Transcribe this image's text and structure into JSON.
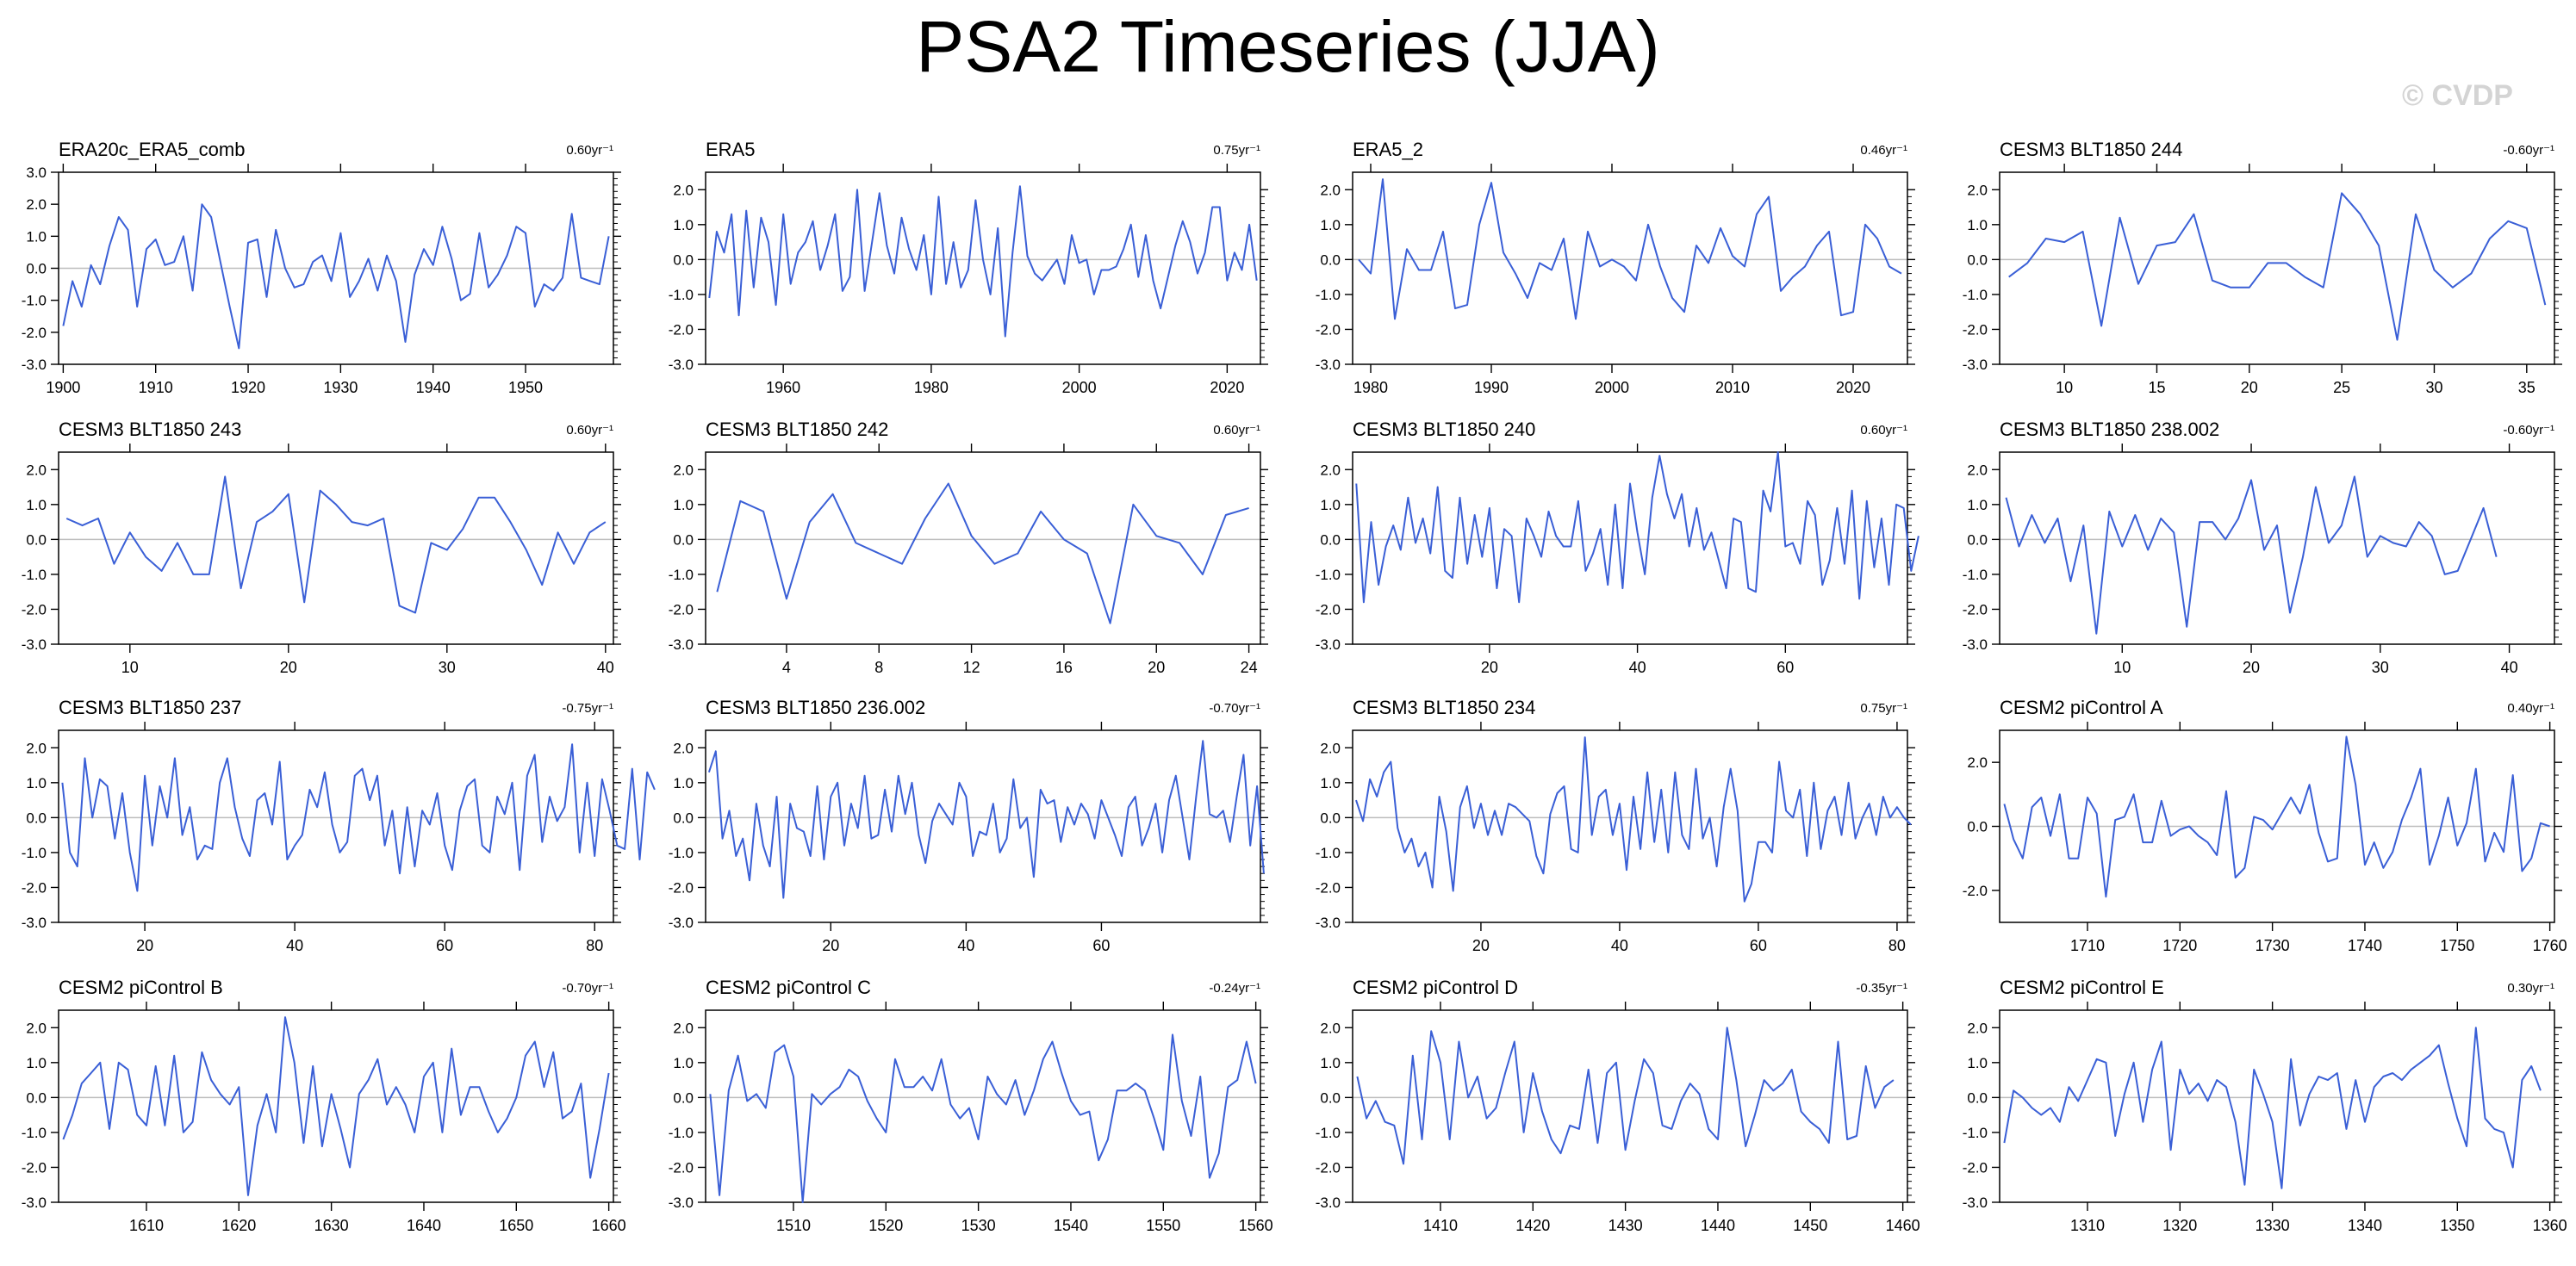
{
  "title": "PSA2 Timeseries (JJA)",
  "watermark": "© CVDP",
  "colors": {
    "line": "#3a5fd6",
    "zero_line": "#bdbdbd",
    "axis": "#000000"
  },
  "chart_data": [
    {
      "type": "line",
      "title": "ERA20c_ERA5_comb",
      "trend": "0.60yr⁻¹",
      "xlim": [
        1899.5,
        1959.5
      ],
      "ylim": [
        -3.0,
        3.0
      ],
      "xticks": [
        1900,
        1910,
        1920,
        1930,
        1940,
        1950
      ],
      "yticks": [
        -3.0,
        -2.0,
        -1.0,
        0.0,
        1.0,
        2.0,
        3.0
      ],
      "x0": 1900,
      "dx": 1,
      "values": [
        -1.8,
        -0.4,
        -1.2,
        0.1,
        -0.5,
        0.7,
        1.6,
        1.2,
        -1.2,
        0.6,
        0.9,
        0.1,
        0.2,
        1.0,
        -0.7,
        2.0,
        1.6,
        0.2,
        -1.2,
        -2.5,
        0.8,
        0.9,
        -0.9,
        1.2,
        0.0,
        -0.6,
        -0.5,
        0.2,
        0.4,
        -0.4,
        1.1,
        -0.9,
        -0.4,
        0.3,
        -0.7,
        0.4,
        -0.4,
        -2.3,
        -0.2,
        0.6,
        0.1,
        1.3,
        0.3,
        -1.0,
        -0.8,
        1.1,
        -0.6,
        -0.2,
        0.4,
        1.3,
        1.1,
        -1.2,
        -0.5,
        -0.7,
        -0.3,
        1.7,
        -0.3,
        -0.4,
        -0.5,
        1.0
      ]
    },
    {
      "type": "line",
      "title": "ERA5",
      "trend": "0.75yr⁻¹",
      "xlim": [
        1949.5,
        2024.5
      ],
      "ylim": [
        -3.0,
        2.5
      ],
      "xticks": [
        1960,
        1980,
        2000,
        2020
      ],
      "yticks": [
        -3.0,
        -2.0,
        -1.0,
        0.0,
        1.0,
        2.0
      ],
      "x0": 1950,
      "dx": 1,
      "values": [
        -1.1,
        0.8,
        0.2,
        1.3,
        -1.6,
        1.4,
        -0.8,
        1.2,
        0.5,
        -1.3,
        1.3,
        -0.7,
        0.2,
        0.5,
        1.1,
        -0.3,
        0.4,
        1.3,
        -0.9,
        -0.5,
        2.0,
        -0.9,
        0.5,
        1.9,
        0.4,
        -0.4,
        1.2,
        0.3,
        -0.3,
        0.7,
        -1.0,
        1.8,
        -0.7,
        0.5,
        -0.8,
        -0.3,
        1.7,
        0.0,
        -1.0,
        0.9,
        -2.2,
        0.2,
        2.1,
        0.1,
        -0.4,
        -0.6,
        -0.3,
        0.0,
        -0.7,
        0.7,
        -0.1,
        0.0,
        -1.0,
        -0.3,
        -0.3,
        -0.2,
        0.3,
        1.0,
        -0.5,
        0.7,
        -0.6,
        -1.4,
        -0.5,
        0.4,
        1.1,
        0.5,
        -0.4,
        0.2,
        1.5,
        1.5,
        -0.6,
        0.2,
        -0.3,
        1.0,
        -0.6
      ]
    },
    {
      "type": "line",
      "title": "ERA5_2",
      "trend": "0.46yr⁻¹",
      "xlim": [
        1978.5,
        2024.5
      ],
      "ylim": [
        -3.0,
        2.5
      ],
      "xticks": [
        1980,
        1990,
        2000,
        2010,
        2020
      ],
      "yticks": [
        -3.0,
        -2.0,
        -1.0,
        0.0,
        1.0,
        2.0
      ],
      "x0": 1979,
      "dx": 1,
      "values": [
        0.0,
        -0.4,
        2.3,
        -1.7,
        0.3,
        -0.3,
        -0.3,
        0.8,
        -1.4,
        -1.3,
        1.0,
        2.2,
        0.2,
        -0.4,
        -1.1,
        -0.1,
        -0.3,
        0.6,
        -1.7,
        0.8,
        -0.2,
        0.0,
        -0.2,
        -0.6,
        1.0,
        -0.2,
        -1.1,
        -1.5,
        0.4,
        -0.1,
        0.9,
        0.1,
        -0.2,
        1.3,
        1.8,
        -0.9,
        -0.5,
        -0.2,
        0.4,
        0.8,
        -1.6,
        -1.5,
        1.0,
        0.6,
        -0.2,
        -0.4
      ]
    },
    {
      "type": "line",
      "title": "CESM3 BLT1850 244",
      "trend": "-0.60yr⁻¹",
      "xlim": [
        6.5,
        36.5
      ],
      "ylim": [
        -3.0,
        2.5
      ],
      "xticks": [
        10,
        15,
        20,
        25,
        30,
        35
      ],
      "yticks": [
        -3.0,
        -2.0,
        -1.0,
        0.0,
        1.0,
        2.0
      ],
      "x0": 7,
      "dx": 1,
      "values": [
        -0.5,
        -0.1,
        0.6,
        0.5,
        0.8,
        -1.9,
        1.2,
        -0.7,
        0.4,
        0.5,
        1.3,
        -0.6,
        -0.8,
        -0.8,
        -0.1,
        -0.1,
        -0.5,
        -0.8,
        1.9,
        1.3,
        0.4,
        -2.3,
        1.3,
        -0.3,
        -0.8,
        -0.4,
        0.6,
        1.1,
        0.9,
        -1.3
      ]
    },
    {
      "type": "line",
      "title": "CESM3 BLT1850 243",
      "trend": "0.60yr⁻¹",
      "xlim": [
        5.5,
        40.5
      ],
      "ylim": [
        -3.0,
        2.5
      ],
      "xticks": [
        10,
        20,
        30,
        40
      ],
      "yticks": [
        -3.0,
        -2.0,
        -1.0,
        0.0,
        1.0,
        2.0
      ],
      "x0": 6,
      "dx": 1,
      "values": [
        0.6,
        0.4,
        0.6,
        -0.7,
        0.2,
        -0.5,
        -0.9,
        -0.1,
        -1.0,
        -1.0,
        1.8,
        -1.4,
        0.5,
        0.8,
        1.3,
        -1.8,
        1.4,
        1.0,
        0.5,
        0.4,
        0.6,
        -1.9,
        -2.1,
        -0.1,
        -0.3,
        0.3,
        1.2,
        1.2,
        0.5,
        -0.3,
        -1.3,
        0.2,
        -0.7,
        0.2,
        0.5
      ]
    },
    {
      "type": "line",
      "title": "CESM3 BLT1850 242",
      "trend": "0.60yr⁻¹",
      "xlim": [
        0.5,
        24.5
      ],
      "ylim": [
        -3.0,
        2.5
      ],
      "xticks": [
        4,
        8,
        12,
        16,
        20,
        24
      ],
      "yticks": [
        -3.0,
        -2.0,
        -1.0,
        0.0,
        1.0,
        2.0
      ],
      "x0": 1,
      "dx": 1,
      "values": [
        -1.5,
        1.1,
        0.8,
        -1.7,
        0.5,
        1.3,
        -0.1,
        -0.4,
        -0.7,
        0.6,
        1.6,
        0.1,
        -0.7,
        -0.4,
        0.8,
        0.0,
        -0.4,
        -2.4,
        1.0,
        0.1,
        -0.1,
        -1.0,
        0.7,
        0.9
      ]
    },
    {
      "type": "line",
      "title": "CESM3 BLT1850 240",
      "trend": "0.60yr⁻¹",
      "xlim": [
        1.5,
        76.5
      ],
      "ylim": [
        -3.0,
        2.5
      ],
      "xticks": [
        20,
        40,
        60
      ],
      "yticks": [
        -3.0,
        -2.0,
        -1.0,
        0.0,
        1.0,
        2.0
      ],
      "x0": 2,
      "dx": 1,
      "values": [
        1.6,
        -1.8,
        0.5,
        -1.3,
        -0.2,
        0.4,
        -0.3,
        1.2,
        -0.1,
        0.6,
        -0.4,
        1.5,
        -0.9,
        -1.1,
        1.2,
        -0.7,
        0.7,
        -0.5,
        0.9,
        -1.4,
        0.3,
        0.1,
        -1.8,
        0.6,
        0.1,
        -0.5,
        0.8,
        0.1,
        -0.2,
        -0.2,
        1.1,
        -0.9,
        -0.4,
        0.3,
        -1.3,
        1.0,
        -1.4,
        1.6,
        0.2,
        -1.0,
        1.2,
        2.4,
        1.3,
        0.6,
        1.3,
        -0.2,
        0.9,
        -0.3,
        0.2,
        -0.6,
        -1.4,
        0.6,
        0.5,
        -1.4,
        -1.5,
        1.4,
        0.8,
        2.5,
        -0.2,
        -0.1,
        -0.7,
        1.1,
        0.7,
        -1.3,
        -0.6,
        0.9,
        -0.7,
        1.4,
        -1.7,
        1.1,
        -0.8,
        0.6,
        -1.3,
        1.0,
        0.9,
        -0.9,
        0.1
      ]
    },
    {
      "type": "line",
      "title": "CESM3 BLT1850 238.002",
      "trend": "-0.60yr⁻¹",
      "xlim": [
        0.5,
        43.5
      ],
      "ylim": [
        -3.0,
        2.5
      ],
      "xticks": [
        10,
        20,
        30,
        40
      ],
      "yticks": [
        -3.0,
        -2.0,
        -1.0,
        0.0,
        1.0,
        2.0
      ],
      "x0": 1,
      "dx": 1,
      "values": [
        1.2,
        -0.2,
        0.7,
        -0.1,
        0.6,
        -1.2,
        0.4,
        -2.7,
        0.8,
        -0.2,
        0.7,
        -0.3,
        0.6,
        0.2,
        -2.5,
        0.5,
        0.5,
        0.0,
        0.6,
        1.7,
        -0.3,
        0.4,
        -2.1,
        -0.5,
        1.5,
        -0.1,
        0.4,
        1.8,
        -0.5,
        0.1,
        -0.1,
        -0.2,
        0.5,
        0.1,
        -1.0,
        -0.9,
        0.0,
        0.9,
        -0.5
      ]
    },
    {
      "type": "line",
      "title": "CESM3 BLT1850 237",
      "trend": "-0.75yr⁻¹",
      "xlim": [
        8.5,
        82.5
      ],
      "ylim": [
        -3.0,
        2.5
      ],
      "xticks": [
        20,
        40,
        60,
        80
      ],
      "yticks": [
        -3.0,
        -2.0,
        -1.0,
        0.0,
        1.0,
        2.0
      ],
      "x0": 9,
      "dx": 1,
      "values": [
        1.0,
        -1.0,
        -1.4,
        1.7,
        0.0,
        1.1,
        0.9,
        -0.6,
        0.7,
        -1.0,
        -2.1,
        1.2,
        -0.8,
        0.9,
        0.0,
        1.7,
        -0.5,
        0.3,
        -1.2,
        -0.8,
        -0.9,
        1.0,
        1.7,
        0.3,
        -0.6,
        -1.1,
        0.5,
        0.7,
        -0.2,
        1.6,
        -1.2,
        -0.8,
        -0.5,
        0.8,
        0.3,
        1.3,
        -0.2,
        -1.0,
        -0.7,
        1.2,
        1.4,
        0.5,
        1.2,
        -0.8,
        0.2,
        -1.6,
        0.3,
        -1.4,
        0.2,
        -0.2,
        0.7,
        -0.8,
        -1.5,
        0.2,
        0.9,
        1.1,
        -0.8,
        -1.0,
        0.6,
        0.1,
        1.0,
        -1.5,
        1.2,
        1.8,
        -0.7,
        0.6,
        -0.1,
        0.3,
        2.1,
        -1.0,
        1.0,
        -1.1,
        1.1,
        0.2,
        -0.8,
        -0.9,
        1.4,
        -1.2,
        1.3,
        0.8
      ]
    },
    {
      "type": "line",
      "title": "CESM3 BLT1850 236.002",
      "trend": "-0.70yr⁻¹",
      "xlim": [
        1.5,
        83.5
      ],
      "ylim": [
        -3.0,
        2.5
      ],
      "xticks": [
        20,
        40,
        60
      ],
      "yticks": [
        -3.0,
        -2.0,
        -1.0,
        0.0,
        1.0,
        2.0
      ],
      "x0": 2,
      "dx": 1,
      "values": [
        1.3,
        1.9,
        -0.6,
        0.2,
        -1.1,
        -0.6,
        -1.8,
        0.4,
        -0.8,
        -1.4,
        0.6,
        -2.3,
        0.4,
        -0.3,
        -0.4,
        -1.1,
        0.9,
        -1.2,
        0.6,
        1.0,
        -0.8,
        0.4,
        -0.3,
        1.2,
        -0.6,
        -0.5,
        0.8,
        -0.4,
        1.2,
        0.1,
        1.0,
        -0.5,
        -1.3,
        -0.1,
        0.4,
        0.1,
        -0.2,
        1.0,
        0.6,
        -1.1,
        -0.4,
        -0.5,
        0.4,
        -1.0,
        -0.6,
        1.1,
        -0.3,
        0.0,
        -1.7,
        0.8,
        0.4,
        0.5,
        -0.7,
        0.3,
        -0.2,
        0.4,
        0.1,
        -0.6,
        0.5,
        0.0,
        -0.5,
        -1.1,
        0.3,
        0.6,
        -0.8,
        -0.3,
        0.4,
        -1.0,
        0.5,
        1.2,
        0.0,
        -1.2,
        0.6,
        2.2,
        0.1,
        0.0,
        0.2,
        -0.7,
        0.6,
        1.8,
        -0.8,
        0.9,
        -1.6
      ]
    },
    {
      "type": "line",
      "title": "CESM3 BLT1850 234",
      "trend": "0.75yr⁻¹",
      "xlim": [
        1.5,
        81.5
      ],
      "ylim": [
        -3.0,
        2.5
      ],
      "xticks": [
        20,
        40,
        60,
        80
      ],
      "yticks": [
        -3.0,
        -2.0,
        -1.0,
        0.0,
        1.0,
        2.0
      ],
      "x0": 2,
      "dx": 1,
      "values": [
        0.5,
        -0.1,
        1.1,
        0.6,
        1.3,
        1.6,
        -0.3,
        -1.0,
        -0.6,
        -1.4,
        -1.0,
        -2.0,
        0.6,
        -0.4,
        -2.1,
        0.3,
        0.9,
        -0.3,
        0.4,
        -0.5,
        0.2,
        -0.5,
        0.4,
        0.3,
        0.1,
        -0.1,
        -1.1,
        -1.6,
        0.1,
        0.7,
        0.9,
        -0.9,
        -1.0,
        2.3,
        -0.5,
        0.6,
        0.8,
        -0.5,
        0.4,
        -1.5,
        0.6,
        -0.9,
        1.3,
        -0.7,
        0.8,
        -1.0,
        1.3,
        -0.5,
        -0.9,
        1.4,
        -0.6,
        0.0,
        -1.4,
        0.3,
        1.4,
        0.2,
        -2.4,
        -1.9,
        -0.7,
        -0.7,
        -1.0,
        1.6,
        0.2,
        0.0,
        0.8,
        -1.1,
        1.0,
        -0.9,
        0.2,
        0.6,
        -0.5,
        1.0,
        -0.6,
        0.0,
        0.4,
        -0.5,
        0.6,
        0.0,
        0.3,
        0.0,
        -0.2
      ]
    },
    {
      "type": "line",
      "title": "CESM2 piControl A",
      "trend": "0.40yr⁻¹",
      "xlim": [
        1700.5,
        1760.5
      ],
      "ylim": [
        -3.0,
        3.0
      ],
      "xticks": [
        1710,
        1720,
        1730,
        1740,
        1750,
        1760
      ],
      "yticks": [
        -2.0,
        0.0,
        2.0
      ],
      "x0": 1701,
      "dx": 1,
      "values": [
        0.7,
        -0.4,
        -1.0,
        0.6,
        0.9,
        -0.3,
        1.0,
        -1.0,
        -1.0,
        0.9,
        0.4,
        -2.2,
        0.2,
        0.3,
        1.0,
        -0.5,
        -0.5,
        0.8,
        -0.3,
        -0.1,
        0.0,
        -0.3,
        -0.5,
        -0.9,
        1.1,
        -1.6,
        -1.3,
        0.3,
        0.2,
        -0.1,
        0.4,
        0.9,
        0.4,
        1.3,
        -0.2,
        -1.1,
        -1.0,
        2.8,
        1.3,
        -1.2,
        -0.5,
        -1.3,
        -0.8,
        0.2,
        0.9,
        1.8,
        -1.2,
        -0.3,
        0.9,
        -0.6,
        0.1,
        1.8,
        -1.1,
        -0.2,
        -0.8,
        1.6,
        -1.4,
        -1.0,
        0.1,
        0.0
      ]
    },
    {
      "type": "line",
      "title": "CESM2 piControl B",
      "trend": "-0.70yr⁻¹",
      "xlim": [
        1600.5,
        1660.5
      ],
      "ylim": [
        -3.0,
        2.5
      ],
      "xticks": [
        1610,
        1620,
        1630,
        1640,
        1650,
        1660
      ],
      "yticks": [
        -3.0,
        -2.0,
        -1.0,
        0.0,
        1.0,
        2.0
      ],
      "x0": 1601,
      "dx": 1,
      "values": [
        -1.2,
        -0.5,
        0.4,
        0.7,
        1.0,
        -0.9,
        1.0,
        0.8,
        -0.5,
        -0.8,
        0.9,
        -0.8,
        1.2,
        -1.0,
        -0.7,
        1.3,
        0.5,
        0.1,
        -0.2,
        0.3,
        -2.8,
        -0.8,
        0.1,
        -1.0,
        2.3,
        1.0,
        -1.3,
        0.9,
        -1.4,
        0.1,
        -0.9,
        -2.0,
        0.1,
        0.5,
        1.1,
        -0.2,
        0.3,
        -0.2,
        -1.0,
        0.6,
        1.0,
        -1.0,
        1.4,
        -0.5,
        0.3,
        0.3,
        -0.4,
        -1.0,
        -0.6,
        0.0,
        1.2,
        1.6,
        0.3,
        1.3,
        -0.6,
        -0.4,
        0.4,
        -2.3,
        -0.9,
        0.7
      ]
    },
    {
      "type": "line",
      "title": "CESM2 piControl C",
      "trend": "-0.24yr⁻¹",
      "xlim": [
        1500.5,
        1560.5
      ],
      "ylim": [
        -3.0,
        2.5
      ],
      "xticks": [
        1510,
        1520,
        1530,
        1540,
        1550,
        1560
      ],
      "yticks": [
        -3.0,
        -2.0,
        -1.0,
        0.0,
        1.0,
        2.0
      ],
      "x0": 1501,
      "dx": 1,
      "values": [
        0.1,
        -2.8,
        0.2,
        1.2,
        -0.1,
        0.1,
        -0.3,
        1.3,
        1.5,
        0.6,
        -3.0,
        0.1,
        -0.2,
        0.1,
        0.3,
        0.8,
        0.6,
        -0.1,
        -0.6,
        -1.0,
        1.1,
        0.3,
        0.3,
        0.6,
        0.2,
        1.1,
        -0.2,
        -0.6,
        -0.3,
        -1.2,
        0.6,
        0.1,
        -0.2,
        0.5,
        -0.5,
        0.2,
        1.1,
        1.6,
        0.7,
        -0.1,
        -0.5,
        -0.4,
        -1.8,
        -1.2,
        0.2,
        0.2,
        0.4,
        0.2,
        -0.6,
        -1.5,
        1.8,
        -0.1,
        -1.1,
        0.6,
        -2.3,
        -1.6,
        0.3,
        0.5,
        1.6,
        0.4
      ]
    },
    {
      "type": "line",
      "title": "CESM2 piControl D",
      "trend": "-0.35yr⁻¹",
      "xlim": [
        1400.5,
        1460.5
      ],
      "ylim": [
        -3.0,
        2.5
      ],
      "xticks": [
        1410,
        1420,
        1430,
        1440,
        1450,
        1460
      ],
      "yticks": [
        -3.0,
        -2.0,
        -1.0,
        0.0,
        1.0,
        2.0
      ],
      "x0": 1401,
      "dx": 1,
      "values": [
        0.6,
        -0.6,
        -0.1,
        -0.7,
        -0.8,
        -1.9,
        1.2,
        -1.2,
        1.9,
        1.0,
        -1.2,
        1.6,
        0.0,
        0.6,
        -0.6,
        -0.3,
        0.7,
        1.6,
        -1.0,
        0.7,
        -0.4,
        -1.2,
        -1.6,
        -0.8,
        -0.9,
        0.8,
        -1.3,
        0.7,
        1.0,
        -1.5,
        -0.1,
        1.1,
        0.7,
        -0.8,
        -0.9,
        -0.1,
        0.4,
        0.1,
        -0.9,
        -1.2,
        2.0,
        0.5,
        -1.4,
        -0.5,
        0.5,
        0.2,
        0.4,
        0.8,
        -0.4,
        -0.7,
        -0.9,
        -1.3,
        1.6,
        -1.2,
        -1.1,
        0.9,
        -0.3,
        0.3,
        0.5
      ]
    },
    {
      "type": "line",
      "title": "CESM2 piControl E",
      "trend": "0.30yr⁻¹",
      "xlim": [
        1300.5,
        1360.5
      ],
      "ylim": [
        -3.0,
        2.5
      ],
      "xticks": [
        1310,
        1320,
        1330,
        1340,
        1350,
        1360
      ],
      "yticks": [
        -3.0,
        -2.0,
        -1.0,
        0.0,
        1.0,
        2.0
      ],
      "x0": 1301,
      "dx": 1,
      "values": [
        -1.3,
        0.2,
        0.0,
        -0.3,
        -0.5,
        -0.3,
        -0.7,
        0.3,
        -0.1,
        0.5,
        1.1,
        1.0,
        -1.1,
        0.1,
        1.0,
        -0.7,
        0.8,
        1.6,
        -1.5,
        0.8,
        0.1,
        0.4,
        -0.1,
        0.5,
        0.3,
        -0.7,
        -2.5,
        0.8,
        0.1,
        -0.7,
        -2.6,
        1.1,
        -0.8,
        0.1,
        0.6,
        0.5,
        0.7,
        -0.9,
        0.5,
        -0.7,
        0.3,
        0.6,
        0.7,
        0.5,
        0.8,
        1.0,
        1.2,
        1.5,
        0.4,
        -0.6,
        -1.4,
        2.0,
        -0.6,
        -0.9,
        -1.0,
        -2.0,
        0.5,
        0.9,
        0.2
      ]
    }
  ]
}
